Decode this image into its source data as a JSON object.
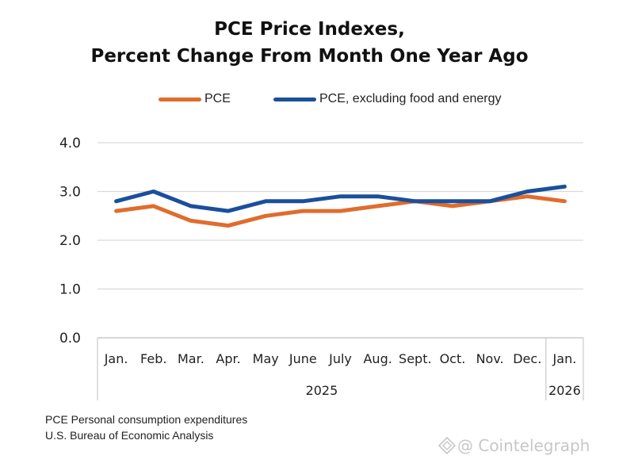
{
  "chart_data": {
    "type": "line",
    "title": [
      "PCE Price Indexes,",
      "Percent Change From Month One Year Ago"
    ],
    "categories": [
      "Jan.",
      "Feb.",
      "Mar.",
      "Apr.",
      "May",
      "June",
      "July",
      "Aug.",
      "Sept.",
      "Oct.",
      "Nov.",
      "Dec.",
      "Jan."
    ],
    "year_groups": [
      {
        "label": "2025",
        "from": 0,
        "to": 11
      },
      {
        "label": "2026",
        "from": 12,
        "to": 12
      }
    ],
    "series": [
      {
        "name": "PCE",
        "color": "#e06c2d",
        "values": [
          2.6,
          2.7,
          2.4,
          2.3,
          2.5,
          2.6,
          2.6,
          2.7,
          2.8,
          2.7,
          2.8,
          2.9,
          2.8
        ]
      },
      {
        "name": "PCE, excluding food and energy",
        "color": "#1a4f9c",
        "values": [
          2.8,
          3.0,
          2.7,
          2.6,
          2.8,
          2.8,
          2.9,
          2.9,
          2.8,
          2.8,
          2.8,
          3.0,
          3.1
        ]
      }
    ],
    "ylim": [
      0,
      4
    ],
    "yticks": [
      "0.0",
      "1.0",
      "2.0",
      "3.0",
      "4.0"
    ],
    "grid": true,
    "legend_position": "top-center",
    "xlabel": "",
    "ylabel": ""
  },
  "footnotes": [
    "PCE Personal consumption expenditures",
    "U.S. Bureau of Economic Analysis"
  ],
  "watermark": "@ Cointelegraph"
}
